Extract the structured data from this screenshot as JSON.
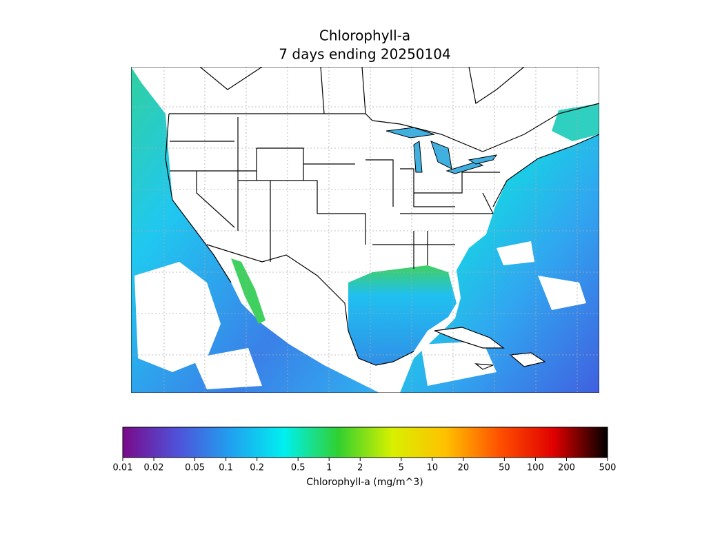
{
  "title": "Chlorophyll-a",
  "subtitle": "7 days ending 20250104",
  "colorbar": {
    "label": "Chlorophyll-a (mg/m^3)",
    "log": true,
    "lim": [
      0.01,
      500
    ],
    "ticks": [
      0.01,
      0.02,
      0.05,
      0.1,
      0.2,
      0.5,
      1,
      2,
      5,
      10,
      20,
      50,
      100,
      200,
      500
    ],
    "colors": [
      "#7a0a8a",
      "#5050d8",
      "#20a0f0",
      "#00f0f0",
      "#30d030",
      "#d8f000",
      "#ffc000",
      "#ff5000",
      "#e00000",
      "#000000"
    ]
  }
}
